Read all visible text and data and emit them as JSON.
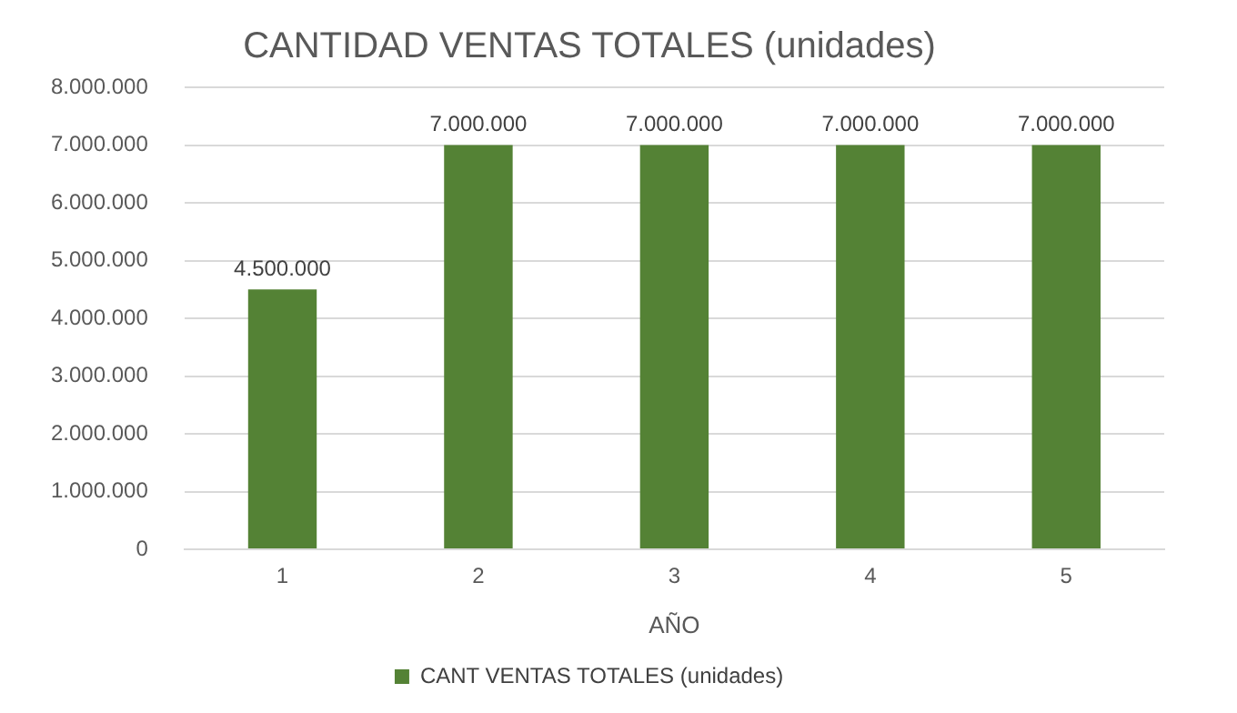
{
  "chart_data": {
    "type": "bar",
    "title": "CANTIDAD VENTAS TOTALES (unidades)",
    "xlabel": "AÑO",
    "categories": [
      "1",
      "2",
      "3",
      "4",
      "5"
    ],
    "series": [
      {
        "name": "CANT VENTAS TOTALES (unidades)",
        "color": "#548235",
        "values": [
          4500000,
          7000000,
          7000000,
          7000000,
          7000000
        ],
        "value_labels": [
          "4.500.000",
          "7.000.000",
          "7.000.000",
          "7.000.000",
          "7.000.000"
        ]
      }
    ],
    "ylim": [
      0,
      8000000
    ],
    "yticks": [
      0,
      {
        "value": 1000000,
        "label": "1.000.000"
      },
      {
        "value": 2000000,
        "label": "2.000.000"
      },
      {
        "value": 3000000,
        "label": "3.000.000"
      },
      {
        "value": 4000000,
        "label": "4.000.000"
      },
      {
        "value": 5000000,
        "label": "5.000.000"
      },
      {
        "value": 6000000,
        "label": "6.000.000"
      },
      {
        "value": 7000000,
        "label": "7.000.000"
      },
      {
        "value": 8000000,
        "label": "8.000.000"
      }
    ],
    "grid": "y",
    "legend": "bottom"
  }
}
